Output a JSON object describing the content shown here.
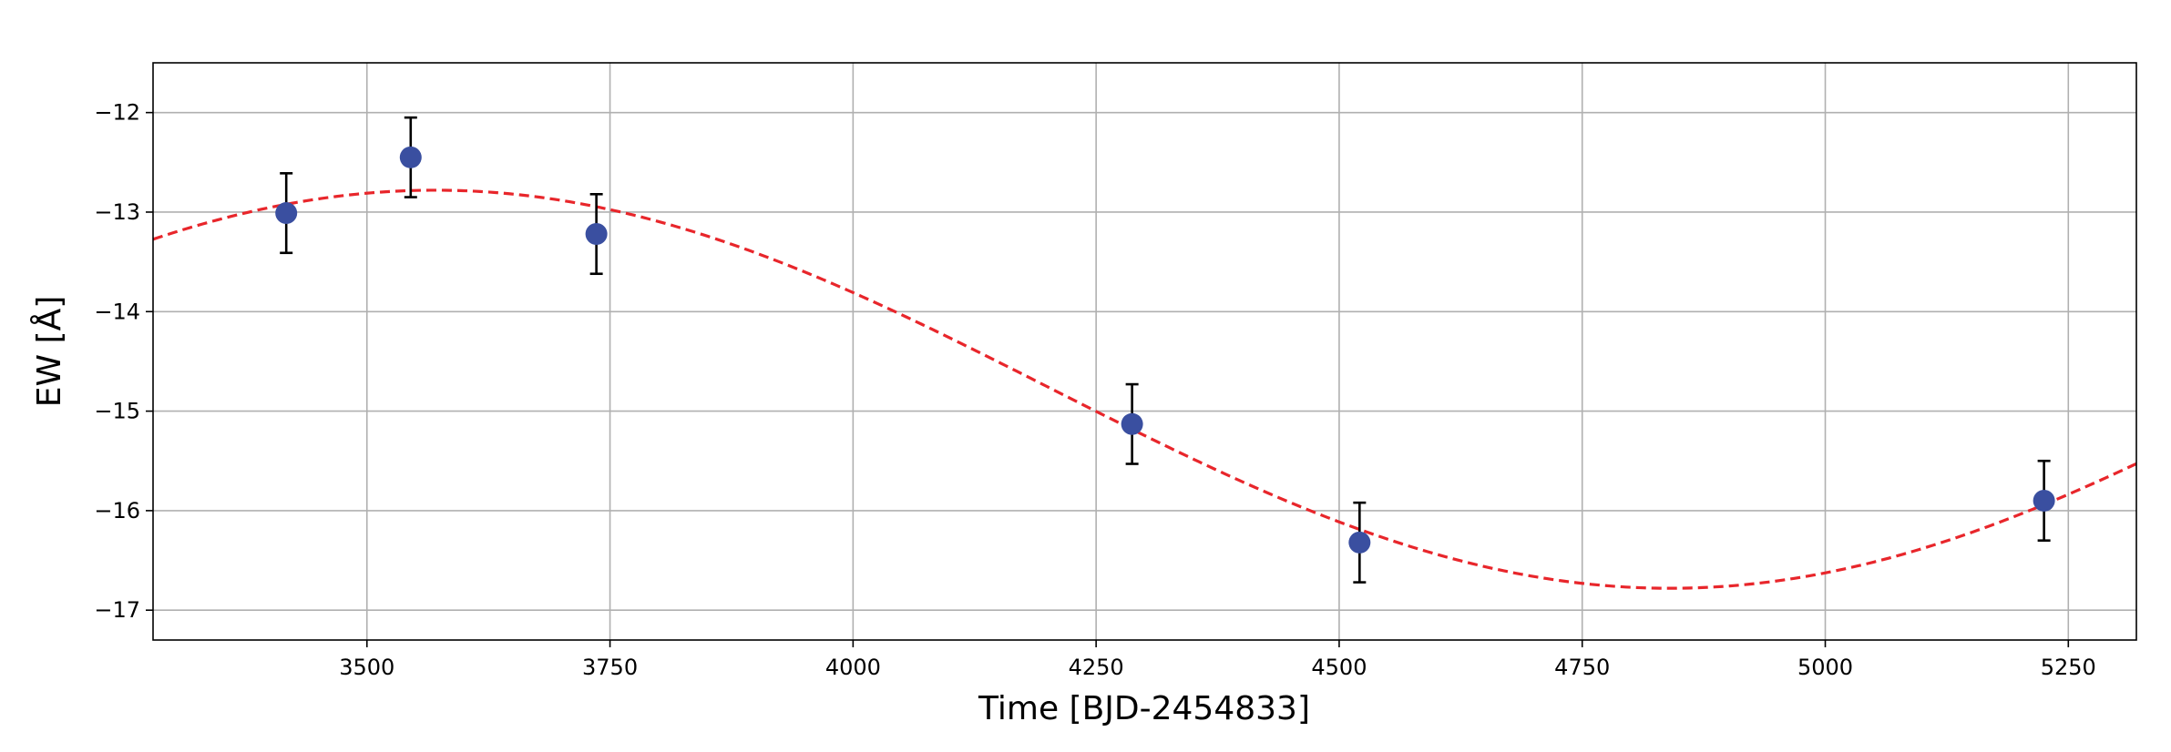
{
  "chart_data": {
    "type": "scatter",
    "title": "",
    "xlabel": "Time [BJD-2454833]",
    "ylabel": "EW [Å]",
    "xlim": [
      3280,
      5320
    ],
    "ylim": [
      -17.3,
      -11.5
    ],
    "xticks": [
      3500,
      3750,
      4000,
      4250,
      4500,
      4750,
      5000,
      5250
    ],
    "xtick_labels": [
      "3500",
      "3750",
      "4000",
      "4250",
      "4500",
      "4750",
      "5000",
      "5250"
    ],
    "yticks": [
      -12,
      -13,
      -14,
      -15,
      -16,
      -17
    ],
    "ytick_labels": [
      "−12",
      "−13",
      "−14",
      "−15",
      "−16",
      "−17"
    ],
    "grid": true,
    "series": [
      {
        "kind": "errorbar-points",
        "x": [
          3417,
          3545,
          3736,
          4287,
          4521,
          5225
        ],
        "y": [
          -13.01,
          -12.45,
          -13.22,
          -15.13,
          -16.32,
          -15.9
        ],
        "yerr": [
          0.4,
          0.4,
          0.4,
          0.4,
          0.4,
          0.4
        ],
        "color": "#3a4fa0",
        "errorbar_color": "#000000"
      },
      {
        "kind": "fit-curve",
        "style": "dashed",
        "color": "#e8262b",
        "model": "sinusoid",
        "offset": -14.78,
        "amplitude": 2.0,
        "period": 2540,
        "peak_time": 3570
      }
    ]
  }
}
